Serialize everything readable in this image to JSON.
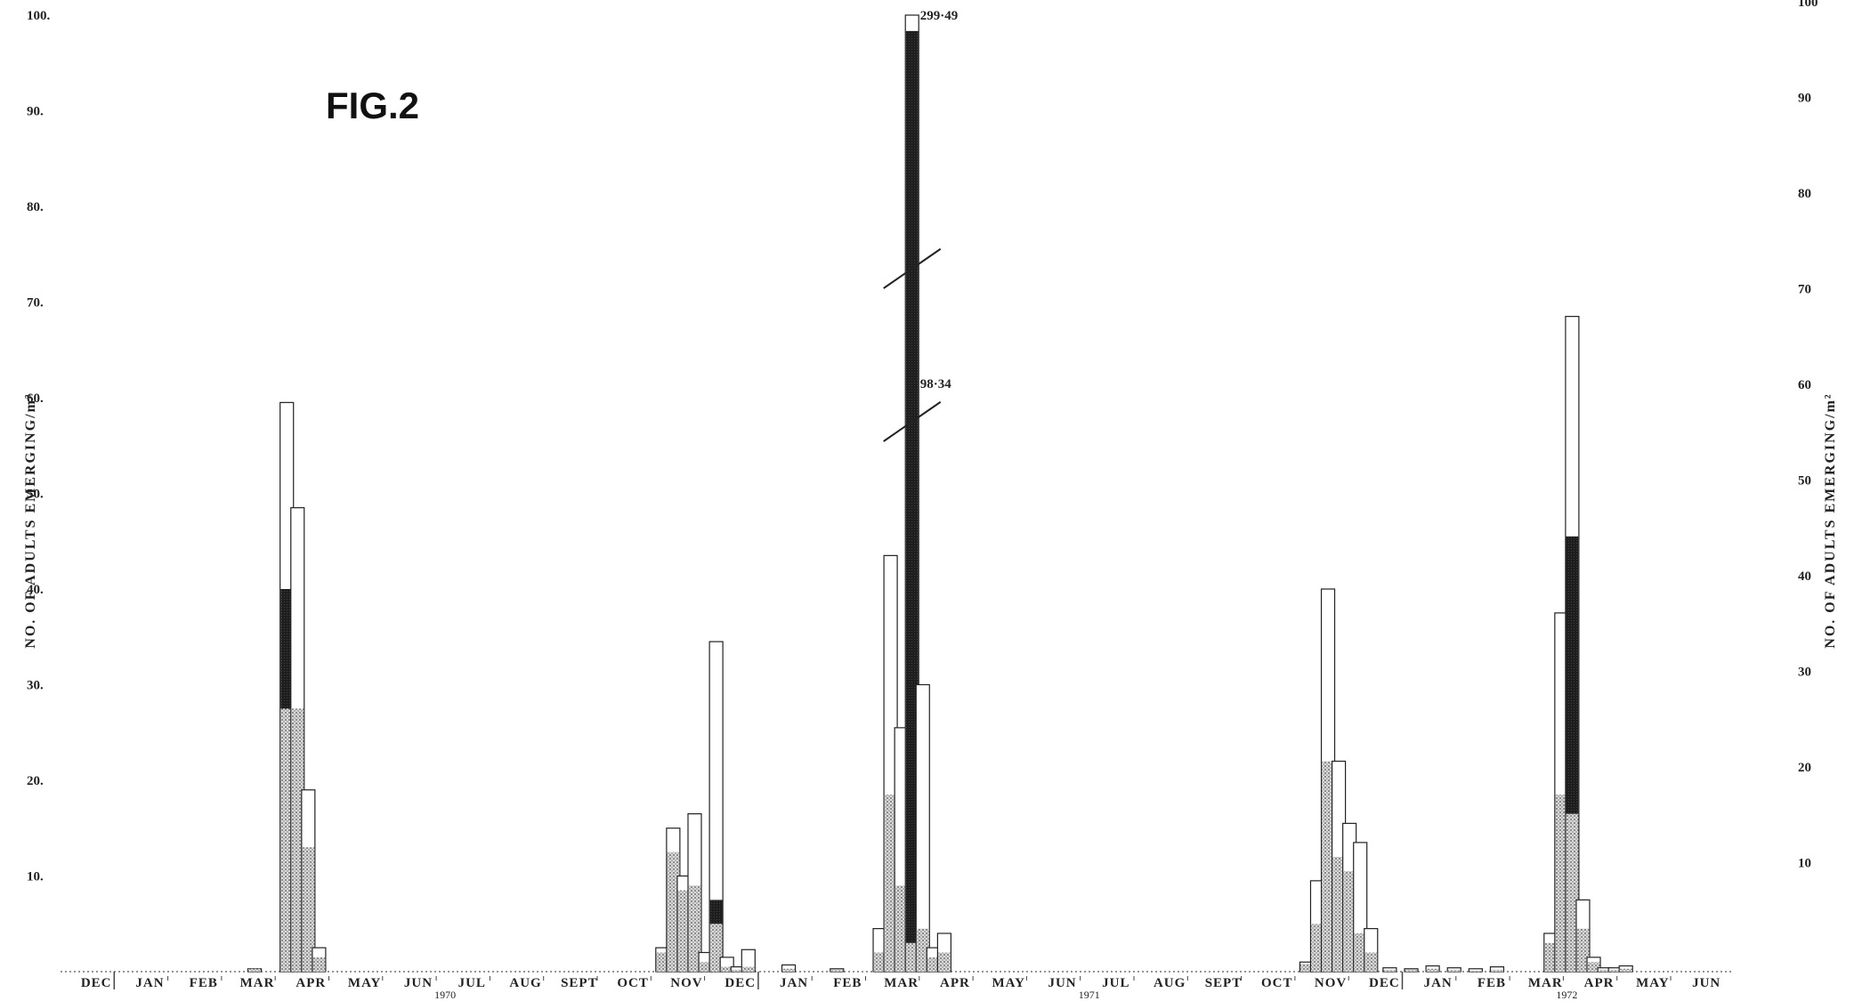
{
  "chart_data": {
    "type": "bar",
    "title": "FIG.2",
    "ylabel_left": "NO. OF ADULTS EMERGING/m²",
    "ylabel_right": "NO. OF ADULTS EMERGING/m²",
    "ylim": [
      0,
      100
    ],
    "yticks_left": [
      "10",
      "20",
      "30",
      "40",
      "50",
      "60",
      "70",
      "80",
      "90",
      "100"
    ],
    "yticks_right": [
      "10",
      "20",
      "30",
      "40",
      "50",
      "60",
      "70",
      "80",
      "90",
      "100"
    ],
    "grid": false,
    "months": [
      "DEC",
      "JAN",
      "FEB",
      "MAR",
      "APR",
      "MAY",
      "JUN",
      "JUL",
      "AUG",
      "SEPT",
      "OCT",
      "NOV",
      "DEC",
      "JAN",
      "FEB",
      "MAR",
      "APR",
      "MAY",
      "JUN",
      "JUL",
      "AUG",
      "SEPT",
      "OCT",
      "NOV",
      "DEC",
      "JAN",
      "FEB",
      "MAR",
      "APR",
      "MAY",
      "JUN"
    ],
    "year_labels": [
      {
        "text": "1970",
        "month_index": 6.5
      },
      {
        "text": "1971",
        "month_index": 18.5
      },
      {
        "text": "1972",
        "month_index": 27.4
      }
    ],
    "encoding": "each bar: total height = open (all adults); stippled portion = shaded series; dark portion = dark series",
    "bars": [
      {
        "t": 3.45,
        "total": 0.3,
        "shaded": 0.3
      },
      {
        "t": 4.05,
        "total": 59.5,
        "shaded": 27.5,
        "dark": 40.0
      },
      {
        "t": 4.25,
        "total": 48.5,
        "shaded": 27.5
      },
      {
        "t": 4.45,
        "total": 19.0,
        "shaded": 13.0
      },
      {
        "t": 4.65,
        "total": 2.5,
        "shaded": 1.5
      },
      {
        "t": 11.05,
        "total": 2.5,
        "shaded": 2.0
      },
      {
        "t": 11.25,
        "total": 15.0,
        "shaded": 12.5
      },
      {
        "t": 11.45,
        "total": 10.0,
        "shaded": 8.5
      },
      {
        "t": 11.65,
        "total": 16.5,
        "shaded": 9.0
      },
      {
        "t": 11.85,
        "total": 2.0,
        "shaded": 1.0
      },
      {
        "t": 12.05,
        "total": 34.5,
        "shaded": 5.0,
        "dark": 7.5
      },
      {
        "t": 12.25,
        "total": 1.5,
        "shaded": 0.5
      },
      {
        "t": 12.45,
        "total": 0.5,
        "shaded": 0.2
      },
      {
        "t": 12.65,
        "total": 2.3,
        "shaded": 0.5
      },
      {
        "t": 13.4,
        "total": 0.7,
        "shaded": 0.3
      },
      {
        "t": 14.3,
        "total": 0.3,
        "shaded": 0.2
      },
      {
        "t": 15.1,
        "total": 4.5,
        "shaded": 2.0
      },
      {
        "t": 15.3,
        "total": 43.5,
        "shaded": 18.5
      },
      {
        "t": 15.5,
        "total": 25.5,
        "shaded": 9.0
      },
      {
        "t": 15.7,
        "total": 299.49,
        "shaded": 3.0,
        "dark": 98.34
      },
      {
        "t": 15.9,
        "total": 30.0,
        "shaded": 4.5
      },
      {
        "t": 16.1,
        "total": 2.5,
        "shaded": 1.5
      },
      {
        "t": 16.3,
        "total": 4.0,
        "shaded": 2.0
      },
      {
        "t": 23.05,
        "total": 1.0,
        "shaded": 0.8
      },
      {
        "t": 23.25,
        "total": 9.5,
        "shaded": 5.0
      },
      {
        "t": 23.45,
        "total": 40.0,
        "shaded": 22.0
      },
      {
        "t": 23.65,
        "total": 22.0,
        "shaded": 12.0
      },
      {
        "t": 23.85,
        "total": 15.5,
        "shaded": 10.5
      },
      {
        "t": 24.05,
        "total": 13.5,
        "shaded": 4.0
      },
      {
        "t": 24.25,
        "total": 4.5,
        "shaded": 2.0
      },
      {
        "t": 24.6,
        "total": 0.4,
        "shaded": 0.2
      },
      {
        "t": 25.0,
        "total": 0.3,
        "shaded": 0.2
      },
      {
        "t": 25.4,
        "total": 0.6,
        "shaded": 0.3
      },
      {
        "t": 25.8,
        "total": 0.4,
        "shaded": 0.2
      },
      {
        "t": 26.2,
        "total": 0.3,
        "shaded": 0.1
      },
      {
        "t": 26.6,
        "total": 0.5,
        "shaded": 0.2
      },
      {
        "t": 27.6,
        "total": 4.0,
        "shaded": 3.0
      },
      {
        "t": 27.8,
        "total": 37.5,
        "shaded": 18.5
      },
      {
        "t": 28.0,
        "total": 68.5,
        "shaded": 16.5,
        "dark": 45.5
      },
      {
        "t": 28.2,
        "total": 7.5,
        "shaded": 4.5
      },
      {
        "t": 28.4,
        "total": 1.5,
        "shaded": 1.0
      },
      {
        "t": 28.6,
        "total": 0.4,
        "shaded": 0.2
      },
      {
        "t": 28.8,
        "total": 0.4,
        "shaded": 0.2
      },
      {
        "t": 29.0,
        "total": 0.6,
        "shaded": 0.3
      }
    ],
    "annotations": [
      {
        "text": "299·49",
        "bar_index": 19,
        "value": 100.5
      },
      {
        "text": "98·34",
        "bar_index": 19,
        "value": 61.5
      }
    ]
  }
}
